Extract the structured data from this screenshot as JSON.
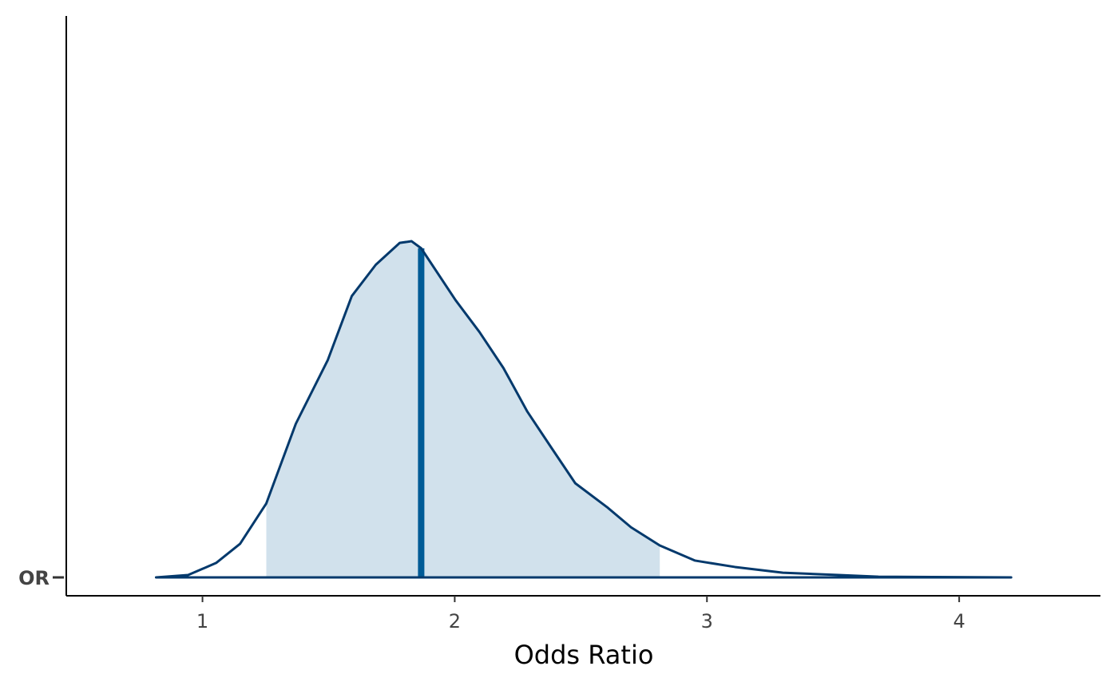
{
  "chart_data": {
    "type": "density",
    "xlabel": "Odds Ratio",
    "categories": [
      "OR"
    ],
    "x": [
      0.816,
      0.943,
      1.054,
      1.149,
      1.253,
      1.37,
      1.497,
      1.592,
      1.687,
      1.782,
      1.829,
      1.867,
      2.003,
      2.098,
      2.193,
      2.288,
      2.383,
      2.478,
      2.604,
      2.699,
      2.813,
      2.953,
      3.111,
      3.301,
      3.522,
      3.68,
      4.206
    ],
    "values": [
      0,
      0.007,
      0.043,
      0.1,
      0.22,
      0.457,
      0.647,
      0.837,
      0.93,
      0.995,
      1.0,
      0.979,
      0.825,
      0.73,
      0.623,
      0.493,
      0.386,
      0.28,
      0.209,
      0.149,
      0.095,
      0.05,
      0.031,
      0.014,
      0.007,
      0.002,
      0
    ],
    "interval": [
      1.253,
      2.813
    ],
    "median": 1.867,
    "line_color": "#03396c",
    "fill_color": "#d1e1ec",
    "median_color": "#005b96",
    "xlim": [
      0.46,
      4.56
    ],
    "ylim": [
      0,
      1.67
    ],
    "xticks": [
      1,
      2,
      3,
      4
    ]
  }
}
